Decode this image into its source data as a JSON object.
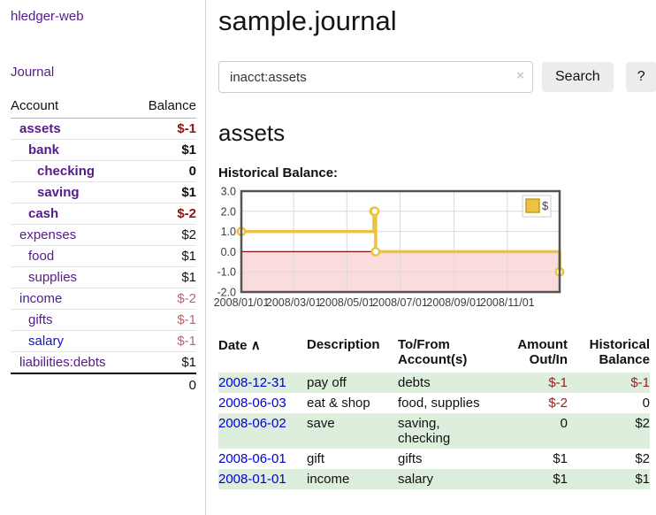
{
  "colors": {
    "account_link": "#551a8b",
    "blue_link": "#0000cc",
    "negative_strong": "#8f1616",
    "negative_muted": "#b46a6c",
    "row_stripe_green": "#ddeedd",
    "button_bg": "#ececec"
  },
  "sidebar": {
    "app_title": "hledger-web",
    "journal_link": "Journal",
    "accounts_table": {
      "headers": {
        "account": "Account",
        "balance": "Balance"
      },
      "rows": [
        {
          "name": "assets",
          "indent": 1,
          "bold": true,
          "balance": "$-1",
          "balance_style": "neg-strong"
        },
        {
          "name": "bank",
          "indent": 2,
          "bold": true,
          "balance": "$1",
          "balance_style": "pos"
        },
        {
          "name": "checking",
          "indent": 3,
          "bold": true,
          "balance": "0",
          "balance_style": "pos"
        },
        {
          "name": "saving",
          "indent": 3,
          "bold": true,
          "balance": "$1",
          "balance_style": "pos"
        },
        {
          "name": "cash",
          "indent": 2,
          "bold": true,
          "balance": "$-2",
          "balance_style": "neg-strong"
        },
        {
          "name": "expenses",
          "indent": 1,
          "bold": false,
          "balance": "$2",
          "balance_style": "pos"
        },
        {
          "name": "food",
          "indent": 2,
          "bold": false,
          "balance": "$1",
          "balance_style": "pos"
        },
        {
          "name": "supplies",
          "indent": 2,
          "bold": false,
          "balance": "$1",
          "balance_style": "pos"
        },
        {
          "name": "income",
          "indent": 1,
          "bold": false,
          "balance": "$-2",
          "balance_style": "neg-muted"
        },
        {
          "name": "gifts",
          "indent": 2,
          "bold": false,
          "balance": "$-1",
          "balance_style": "neg-muted"
        },
        {
          "name": "salary",
          "indent": 2,
          "bold": false,
          "link_color": "blue",
          "balance": "$-1",
          "balance_style": "neg-muted"
        },
        {
          "name": "liabilities:debts",
          "indent": 1,
          "bold": false,
          "balance": "$1",
          "balance_style": "pos"
        }
      ],
      "total": "0"
    }
  },
  "header": {
    "title": "sample.journal"
  },
  "search": {
    "value": "inacct:assets",
    "clear_icon": "×",
    "button_label": "Search",
    "help_label": "?"
  },
  "account_page": {
    "title": "assets",
    "chart_label": "Historical Balance:"
  },
  "chart_data": {
    "type": "line",
    "step": true,
    "series": [
      {
        "name": "$",
        "color": "#edc240",
        "marker_fill": "#ffffff",
        "points": [
          {
            "date": "2008-01-01",
            "value": 1
          },
          {
            "date": "2008-06-01",
            "value": 2
          },
          {
            "date": "2008-06-02",
            "value": 2
          },
          {
            "date": "2008-06-03",
            "value": 0
          },
          {
            "date": "2008-12-31",
            "value": -1
          }
        ]
      }
    ],
    "xlim": [
      "2008-01-01",
      "2008-12-31"
    ],
    "ylim": [
      -2,
      3
    ],
    "yticks": [
      3.0,
      2.0,
      1.0,
      0.0,
      -1.0,
      -2.0
    ],
    "xtick_labels": [
      "2008/01/01",
      "2008/03/01",
      "2008/05/01",
      "2008/07/01",
      "2008/09/01",
      "2008/11/01"
    ],
    "grid": true,
    "negative_region_fill": "#fbdcdc",
    "zero_line_color": "#8b1111",
    "border_color": "#545454",
    "grid_color": "#d9d9d9",
    "legend": {
      "label": "$",
      "position": "top-right"
    }
  },
  "register_table": {
    "headers": {
      "date": "Date",
      "sort_indicator": "∧",
      "description": "Description",
      "accounts": "To/From Account(s)",
      "amount": "Amount Out/In",
      "balance": "Historical Balance"
    },
    "rows": [
      {
        "date": "2008-12-31",
        "description": "pay off",
        "accounts": "debts",
        "amount": "$-1",
        "amount_neg": true,
        "balance": "$-1",
        "balance_neg": true
      },
      {
        "date": "2008-06-03",
        "description": "eat & shop",
        "accounts": "food, supplies",
        "amount": "$-2",
        "amount_neg": true,
        "balance": "0",
        "balance_neg": false
      },
      {
        "date": "2008-06-02",
        "description": "save",
        "accounts": "saving, checking",
        "amount": "0",
        "amount_neg": false,
        "balance": "$2",
        "balance_neg": false
      },
      {
        "date": "2008-06-01",
        "description": "gift",
        "accounts": "gifts",
        "amount": "$1",
        "amount_neg": false,
        "balance": "$2",
        "balance_neg": false
      },
      {
        "date": "2008-01-01",
        "description": "income",
        "accounts": "salary",
        "amount": "$1",
        "amount_neg": false,
        "balance": "$1",
        "balance_neg": false
      }
    ]
  }
}
